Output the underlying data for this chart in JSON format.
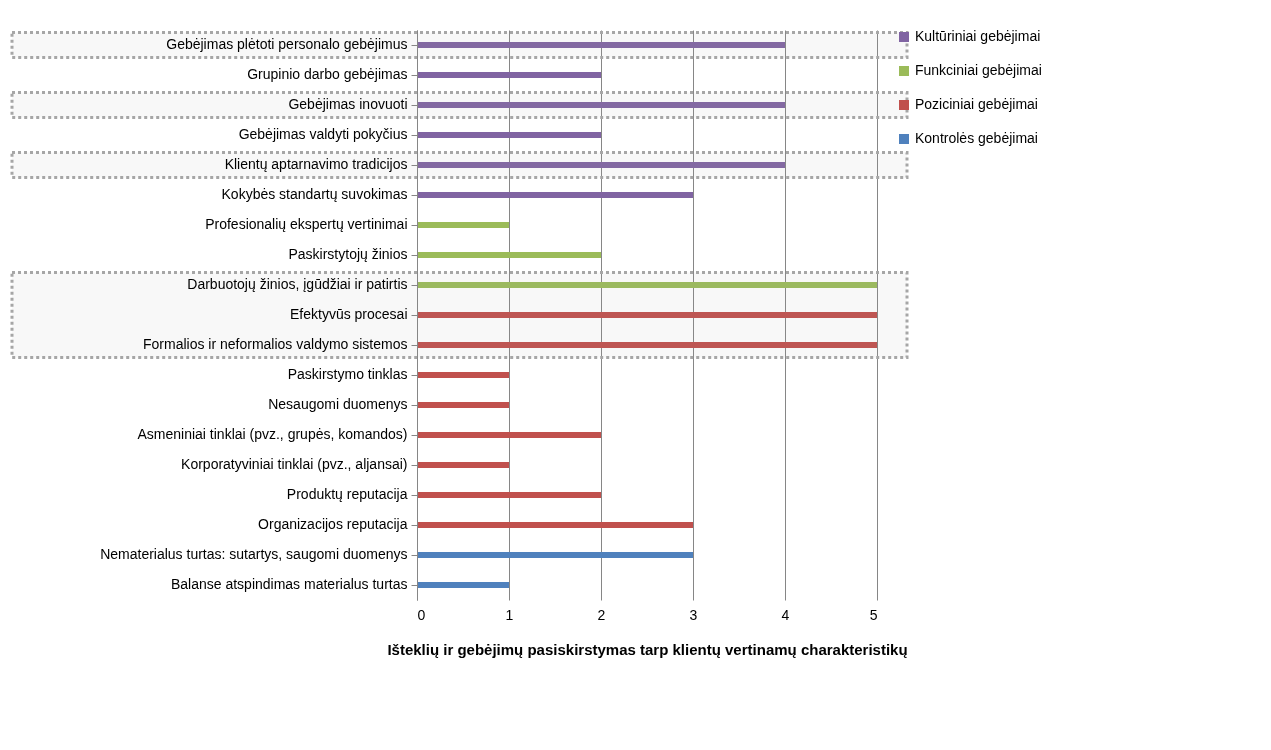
{
  "chart_data": {
    "type": "bar",
    "orientation": "horizontal",
    "xlabel": "Išteklių ir gebėjimų pasiskirstymas  tarp klientų vertinamų charakteristikų",
    "categories": [
      "Gebėjimas plėtoti personalo gebėjimus",
      "Grupinio darbo gebėjimas",
      "Gebėjimas inovuoti",
      "Gebėjimas valdyti pokyčius",
      "Klientų aptarnavimo tradicijos",
      "Kokybės standartų  suvokimas",
      "Profesionalių ekspertų vertinimai",
      "Paskirstytojų žinios",
      "Darbuotojų žinios, įgūdžiai ir patirtis",
      "Efektyvūs procesai",
      "Formalios ir neformalios valdymo sistemos",
      "Paskirstymo tinklas",
      "Nesaugomi duomenys",
      "Asmeniniai tinklai (pvz., grupės, komandos)",
      "Korporatyviniai tinklai (pvz., aljansai)",
      "Produktų reputacija",
      "Organizacijos reputacija",
      "Nematerialus turtas: sutartys, saugomi duomenys",
      "Balanse atspindimas materialus turtas"
    ],
    "series": [
      {
        "name": "Kultūriniai gebėjimai",
        "color": "#8064a2",
        "values": [
          4,
          2,
          4,
          2,
          4,
          3,
          null,
          null,
          null,
          null,
          null,
          null,
          null,
          null,
          null,
          null,
          null,
          null,
          null
        ]
      },
      {
        "name": "Funkciniai gebėjimai",
        "color": "#9bbb59",
        "values": [
          null,
          null,
          null,
          null,
          null,
          null,
          1,
          2,
          5,
          null,
          null,
          null,
          null,
          null,
          null,
          null,
          null,
          null,
          null
        ]
      },
      {
        "name": "Poziciniai gebėjimai",
        "color": "#c0504d",
        "values": [
          null,
          null,
          null,
          null,
          null,
          null,
          null,
          null,
          null,
          5,
          5,
          1,
          1,
          2,
          1,
          2,
          3,
          null,
          null
        ]
      },
      {
        "name": "Kontrolės gebėjimai",
        "color": "#4f81bd",
        "values": [
          null,
          null,
          null,
          null,
          null,
          null,
          null,
          null,
          null,
          null,
          null,
          null,
          null,
          null,
          null,
          null,
          null,
          3,
          1
        ]
      }
    ],
    "xlim": [
      0,
      5
    ],
    "xticks": [
      0,
      1,
      2,
      3,
      4,
      5
    ],
    "grid": "x",
    "legend": "right",
    "bands": [
      {
        "axis": "y",
        "from": "Gebėjimas plėtoti personalo gebėjimus",
        "to": "Gebėjimas plėtoti personalo gebėjimus",
        "color": "#a6a6a6"
      },
      {
        "axis": "y",
        "from": "Gebėjimas inovuoti",
        "to": "Gebėjimas inovuoti",
        "color": "#a6a6a6"
      },
      {
        "axis": "y",
        "from": "Klientų aptarnavimo tradicijos",
        "to": "Klientų aptarnavimo tradicijos",
        "color": "#a6a6a6"
      },
      {
        "axis": "y",
        "from": "Darbuotojų žinios, įgūdžiai ir patirtis",
        "to": "Formalios ir neformalios valdymo sistemos",
        "color": "#a6a6a6"
      }
    ]
  }
}
